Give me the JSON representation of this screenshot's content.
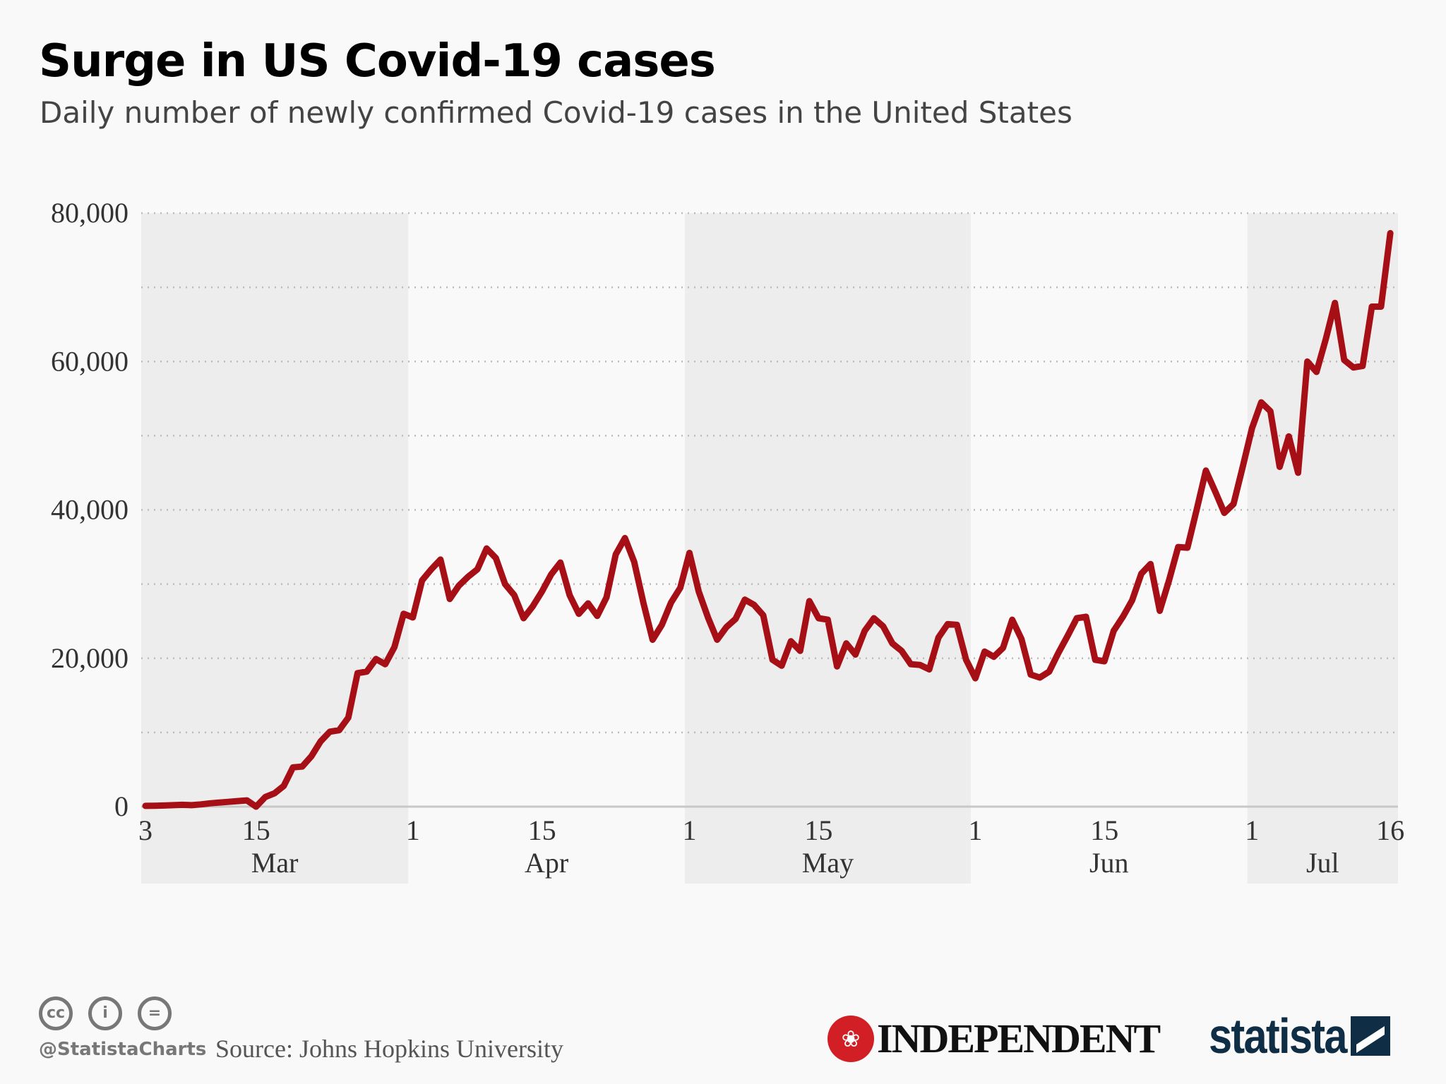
{
  "title": "Surge in US Covid-19 cases",
  "subtitle": "Daily number of newly confirmed Covid-19 cases in the United States",
  "footer": {
    "handle": "@StatistaCharts",
    "source": "Source: Johns Hopkins University",
    "license_icons": [
      "cc-icon",
      "by-icon",
      "nd-icon"
    ],
    "license_icon_text": [
      "cc",
      "i",
      "="
    ],
    "partner_logo": "INDEPENDENT",
    "brand_logo": "statista"
  },
  "colors": {
    "line": "#a50f15",
    "band": "#ededed",
    "background": "#f9f9f9"
  },
  "chart_data": {
    "type": "line",
    "title": "Surge in US Covid-19 cases",
    "subtitle": "Daily number of newly confirmed Covid-19 cases in the United States",
    "x_start": "2020-03-03",
    "x_end": "2020-07-16",
    "ylim": [
      0,
      80000
    ],
    "yticks": [
      0,
      20000,
      40000,
      60000,
      80000
    ],
    "ytick_labels": [
      "0",
      "20,000",
      "40,000",
      "60,000",
      "80,000"
    ],
    "grid": "horizontal dotted, every 10,000",
    "xticks": [
      {
        "date": "2020-03-03",
        "label": "3"
      },
      {
        "date": "2020-03-15",
        "label": "15"
      },
      {
        "date": "2020-04-01",
        "label": "1"
      },
      {
        "date": "2020-04-15",
        "label": "15"
      },
      {
        "date": "2020-05-01",
        "label": "1"
      },
      {
        "date": "2020-05-15",
        "label": "15"
      },
      {
        "date": "2020-06-01",
        "label": "1"
      },
      {
        "date": "2020-06-15",
        "label": "15"
      },
      {
        "date": "2020-07-01",
        "label": "1"
      },
      {
        "date": "2020-07-16",
        "label": "16"
      }
    ],
    "months": [
      {
        "label": "Mar",
        "start": "2020-03-03",
        "end": "2020-04-01",
        "shaded": true
      },
      {
        "label": "Apr",
        "start": "2020-04-01",
        "end": "2020-05-01",
        "shaded": false
      },
      {
        "label": "May",
        "start": "2020-05-01",
        "end": "2020-06-01",
        "shaded": true
      },
      {
        "label": "Jun",
        "start": "2020-06-01",
        "end": "2020-07-01",
        "shaded": false
      },
      {
        "label": "Jul",
        "start": "2020-07-01",
        "end": "2020-07-16",
        "shaded": true
      }
    ],
    "values": [
      100,
      120,
      150,
      200,
      250,
      200,
      300,
      450,
      550,
      650,
      750,
      850,
      0,
      1300,
      1800,
      2800,
      5300,
      5400,
      6800,
      8800,
      10100,
      10300,
      12000,
      18000,
      18200,
      19900,
      19200,
      21500,
      26000,
      25500,
      30500,
      32000,
      33300,
      28000,
      29800,
      31000,
      32000,
      34800,
      33500,
      30000,
      28500,
      25400,
      27000,
      29000,
      31300,
      32900,
      28500,
      26000,
      27400,
      25700,
      28200,
      34000,
      36200,
      33000,
      27500,
      22500,
      24500,
      27500,
      29500,
      34200,
      29000,
      25500,
      22500,
      24200,
      25300,
      27900,
      27200,
      25800,
      19800,
      19000,
      22300,
      21000,
      27700,
      25400,
      25200,
      18900,
      22000,
      20500,
      23700,
      25400,
      24300,
      22000,
      21000,
      19200,
      19100,
      18500,
      22800,
      24600,
      24500,
      19800,
      17300,
      20900,
      20200,
      21400,
      25200,
      22600,
      17800,
      17400,
      18200,
      20700,
      23000,
      25400,
      25600,
      19800,
      19600,
      23700,
      25600,
      27800,
      31400,
      32700,
      26400,
      30500,
      35000,
      34900,
      40000,
      45300,
      42500,
      39600,
      40800,
      45800,
      51000,
      54500,
      53300,
      45800,
      49900,
      45000,
      60000,
      58600,
      63000,
      67900,
      60200,
      59200,
      59400,
      67400,
      67400,
      77300
    ]
  }
}
